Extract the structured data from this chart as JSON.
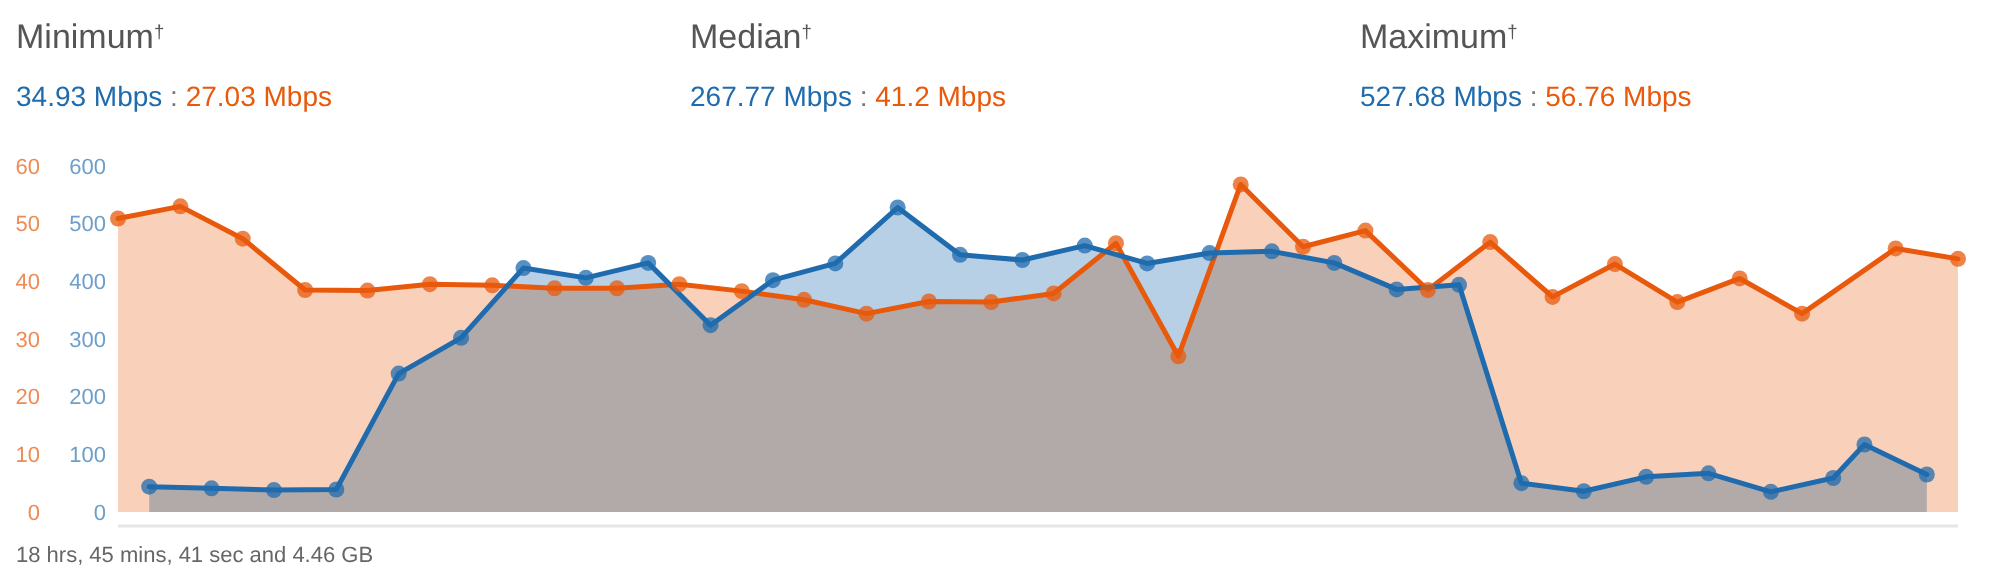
{
  "chart_data": {
    "type": "area",
    "categories": [
      null,
      null,
      null,
      null,
      null,
      null,
      null,
      null,
      null,
      null,
      null,
      null,
      null,
      null,
      null,
      null,
      null,
      null,
      null,
      null,
      null,
      null,
      null,
      null,
      null,
      null,
      null,
      null,
      null,
      null,
      null,
      null,
      null,
      null,
      null,
      null,
      null,
      null,
      null,
      null,
      null,
      null,
      null,
      null,
      null,
      null,
      null,
      null,
      null,
      null,
      null,
      null,
      null,
      null,
      null,
      null,
      null,
      null,
      null,
      null
    ],
    "series": [
      {
        "color": "#e8590c",
        "axis": "y",
        "values": [
          50.9,
          null,
          53.0,
          null,
          47.4,
          null,
          38.5,
          null,
          38.4,
          null,
          39.5,
          null,
          39.3,
          null,
          38.8,
          null,
          38.8,
          null,
          39.5,
          null,
          38.3,
          null,
          36.8,
          null,
          34.4,
          null,
          36.5,
          null,
          36.4,
          null,
          37.9,
          null,
          46.6,
          null,
          27.0,
          null,
          56.8,
          null,
          46.0,
          null,
          48.8,
          null,
          38.5,
          null,
          46.8,
          null,
          37.3,
          null,
          43.0,
          null,
          36.4,
          null,
          40.5,
          null,
          34.4,
          null,
          null,
          45.7,
          null,
          43.9
        ]
      },
      {
        "color": "#1f6bad",
        "axis": "y2",
        "values": [
          null,
          44,
          null,
          41,
          null,
          38,
          null,
          39,
          null,
          240,
          null,
          302,
          null,
          423,
          null,
          406,
          null,
          432,
          null,
          324,
          null,
          402,
          null,
          431,
          null,
          528,
          null,
          446,
          null,
          437,
          null,
          462,
          null,
          431,
          null,
          449,
          null,
          452,
          null,
          432,
          null,
          386,
          null,
          394,
          null,
          50,
          null,
          36,
          null,
          61,
          null,
          67,
          null,
          35,
          null,
          59,
          117,
          null,
          65,
          null
        ]
      }
    ],
    "ylim": [
      0,
      60
    ],
    "yticks": [
      0,
      10,
      20,
      30,
      40,
      50,
      60
    ],
    "y2lim": [
      0,
      600
    ],
    "y2ticks": [
      0,
      100,
      200,
      300,
      400,
      500,
      600
    ],
    "tick_labels": "y",
    "marker": "circle",
    "annotations": [
      "Minimum$^{†}$",
      "34.93 Mbps : 27.03 Mbps",
      "Median$^{†}$",
      "267.77 Mbps : 41.2 Mbps",
      "Maximum$^{†}$",
      "527.68 Mbps : 56.76 Mbps",
      "18 hrs, 45 mins, 41 sec and 4.46 GB"
    ]
  }
}
